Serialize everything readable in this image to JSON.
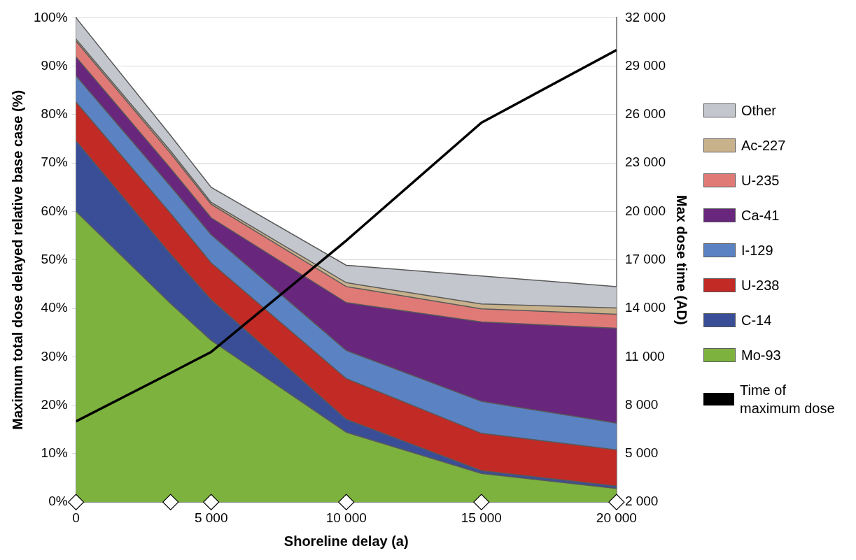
{
  "chart_data": {
    "type": "area",
    "stacked": true,
    "xlabel": "Shoreline delay (a)",
    "ylabel": "Maximum total dose delayed relative base case (%)",
    "y2label": "Max dose time (AD)",
    "x": [
      0,
      3500,
      5000,
      10000,
      15000,
      20000
    ],
    "xlim": [
      0,
      20000
    ],
    "xticks": [
      0,
      {
        "value": 5000,
        "label": "5 000"
      },
      {
        "value": 10000,
        "label": "10 000"
      },
      {
        "value": 15000,
        "label": "15 000"
      },
      {
        "value": 20000,
        "label": "20 000"
      }
    ],
    "ylim": [
      0,
      100
    ],
    "yticks": [
      {
        "value": 0,
        "label": "0%"
      },
      {
        "value": 10,
        "label": "10%"
      },
      {
        "value": 20,
        "label": "20%"
      },
      {
        "value": 30,
        "label": "30%"
      },
      {
        "value": 40,
        "label": "40%"
      },
      {
        "value": 50,
        "label": "50%"
      },
      {
        "value": 60,
        "label": "60%"
      },
      {
        "value": 70,
        "label": "70%"
      },
      {
        "value": 80,
        "label": "80%"
      },
      {
        "value": 90,
        "label": "90%"
      },
      {
        "value": 100,
        "label": "100%"
      }
    ],
    "y2lim": [
      2000,
      32000
    ],
    "y2ticks": [
      {
        "value": 2000,
        "label": "2 000"
      },
      {
        "value": 5000,
        "label": "5 000"
      },
      {
        "value": 8000,
        "label": "8 000"
      },
      {
        "value": 11000,
        "label": "11 000"
      },
      {
        "value": 14000,
        "label": "14 000"
      },
      {
        "value": 17000,
        "label": "17 000"
      },
      {
        "value": 20000,
        "label": "20 000"
      },
      {
        "value": 23000,
        "label": "23 000"
      },
      {
        "value": 26000,
        "label": "26 000"
      },
      {
        "value": 29000,
        "label": "29 000"
      },
      {
        "value": 32000,
        "label": "32 000"
      }
    ],
    "grid": "y",
    "legend": "right",
    "series": [
      {
        "name": "Mo-93",
        "color": "#7db23f",
        "values": [
          60,
          41,
          33.4,
          14.4,
          5.9,
          2.8
        ]
      },
      {
        "name": "C-14",
        "color": "#3a4e98",
        "values": [
          14.6,
          10.2,
          8.4,
          2.7,
          0.6,
          0.5
        ]
      },
      {
        "name": "U-238",
        "color": "#c22a26",
        "values": [
          8,
          8.4,
          7.6,
          8.4,
          7.7,
          7.5
        ]
      },
      {
        "name": "I-129",
        "color": "#5b82c2",
        "values": [
          5.4,
          5.6,
          5.8,
          5.8,
          6.6,
          5.5
        ]
      },
      {
        "name": "Ca-41",
        "color": "#68267d",
        "values": [
          3.9,
          3.7,
          3.5,
          9.9,
          16.4,
          19.6
        ]
      },
      {
        "name": "U-235",
        "color": "#e07a76",
        "values": [
          3.3,
          3.1,
          2.8,
          3.3,
          2.7,
          2.9
        ]
      },
      {
        "name": "Ac-227",
        "color": "#c8b28c",
        "values": [
          0.4,
          0.5,
          0.4,
          0.8,
          1,
          1.3
        ]
      },
      {
        "name": "Other",
        "color": "#c4c6cd",
        "values": [
          4.4,
          3.2,
          3.1,
          3.6,
          5.8,
          4.4
        ]
      },
      {
        "name": "Time of maximum dose",
        "type": "line",
        "axis": "y2",
        "color": "#000000",
        "marker": "none",
        "values": [
          7000,
          10000,
          11300,
          18200,
          25500,
          30000
        ]
      },
      {
        "type": "scatter",
        "marker": "diamond",
        "color": "#ffffff",
        "values": [
          0,
          0,
          0,
          0,
          0,
          0
        ]
      }
    ]
  }
}
